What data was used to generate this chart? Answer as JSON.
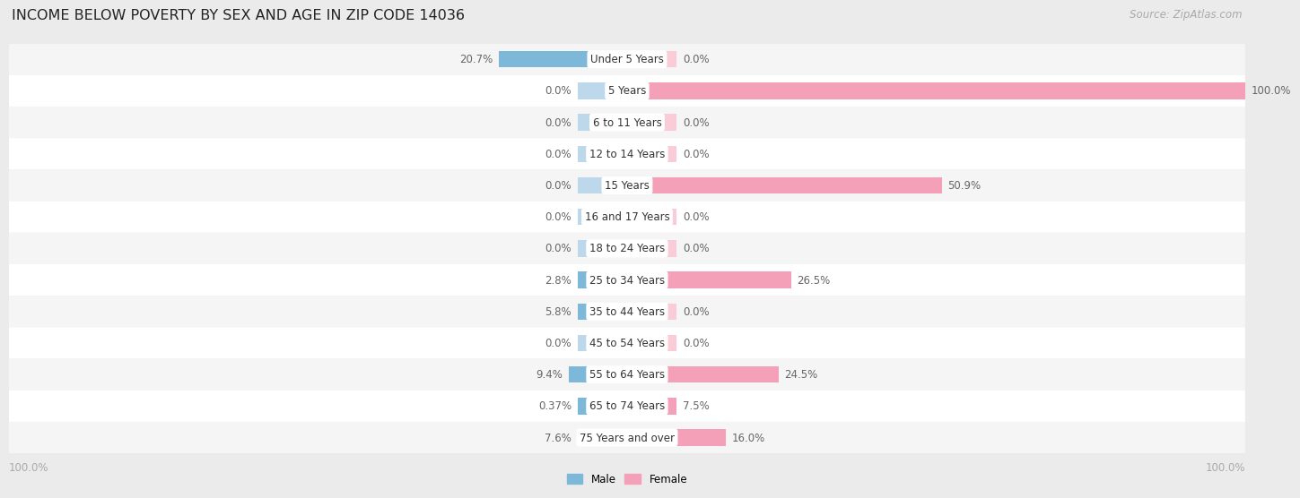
{
  "title": "INCOME BELOW POVERTY BY SEX AND AGE IN ZIP CODE 14036",
  "source": "Source: ZipAtlas.com",
  "categories": [
    "Under 5 Years",
    "5 Years",
    "6 to 11 Years",
    "12 to 14 Years",
    "15 Years",
    "16 and 17 Years",
    "18 to 24 Years",
    "25 to 34 Years",
    "35 to 44 Years",
    "45 to 54 Years",
    "55 to 64 Years",
    "65 to 74 Years",
    "75 Years and over"
  ],
  "male_values": [
    20.7,
    0.0,
    0.0,
    0.0,
    0.0,
    0.0,
    0.0,
    2.8,
    5.8,
    0.0,
    9.4,
    0.37,
    7.6
  ],
  "female_values": [
    0.0,
    100.0,
    0.0,
    0.0,
    50.9,
    0.0,
    0.0,
    26.5,
    0.0,
    0.0,
    24.5,
    7.5,
    16.0
  ],
  "male_color": "#7db8d8",
  "female_color": "#f4a0b8",
  "male_stub_color": "#bcd8ea",
  "female_stub_color": "#f9ccd8",
  "bar_height": 0.52,
  "max_value": 100.0,
  "min_bar": 8.0,
  "bg_color": "#ebebeb",
  "row_color_even": "#f5f5f5",
  "row_color_odd": "#ffffff",
  "label_color": "#666666",
  "cat_label_color": "#333333",
  "title_color": "#222222",
  "axis_label_color": "#aaaaaa",
  "label_fontsize": 8.5,
  "title_fontsize": 11.5,
  "source_fontsize": 8.5,
  "cat_fontsize": 8.5
}
